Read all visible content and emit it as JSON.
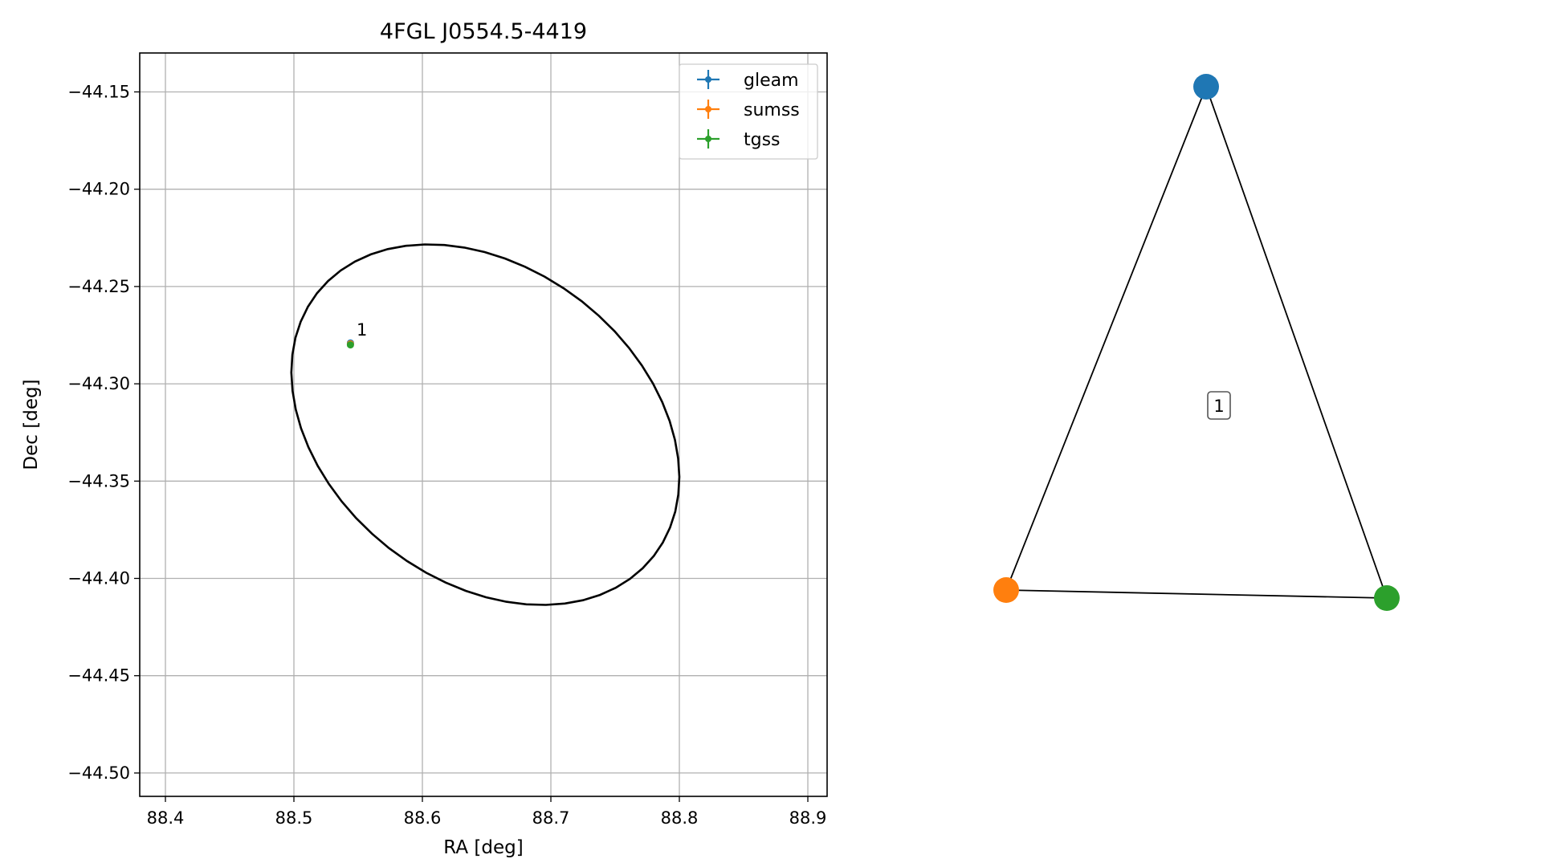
{
  "chart_data": [
    {
      "type": "scatter",
      "title": "4FGL J0554.5-4419",
      "xlabel": "RA [deg]",
      "ylabel": "Dec [deg]",
      "xlim": [
        88.38,
        88.915
      ],
      "ylim": [
        -44.512,
        -44.13
      ],
      "xticks": [
        88.4,
        88.5,
        88.6,
        88.7,
        88.8,
        88.9
      ],
      "yticks": [
        -44.15,
        -44.2,
        -44.25,
        -44.3,
        -44.35,
        -44.4,
        -44.45,
        -44.5
      ],
      "xtick_labels": [
        "88.4",
        "88.5",
        "88.6",
        "88.7",
        "88.8",
        "88.9"
      ],
      "ytick_labels": [
        "−44.15",
        "−44.20",
        "−44.25",
        "−44.30",
        "−44.35",
        "−44.40",
        "−44.45",
        "−44.50"
      ],
      "grid": true,
      "legend_position": "top-right",
      "series": [
        {
          "name": "gleam",
          "color": "#1f77b4",
          "x": [
            88.544
          ],
          "y": [
            -44.279
          ]
        },
        {
          "name": "sumss",
          "color": "#ff7f0e",
          "x": [
            88.544
          ],
          "y": [
            -44.2795
          ]
        },
        {
          "name": "tgss",
          "color": "#2ca02c",
          "x": [
            88.544
          ],
          "y": [
            -44.28
          ]
        }
      ],
      "annotations": [
        {
          "text": "1",
          "x": 88.55,
          "y": -44.274
        }
      ],
      "ellipse": {
        "center_ra": 88.649,
        "center_dec": -44.321,
        "color": "#000000"
      }
    },
    {
      "type": "graph",
      "nodes": [
        {
          "id": "gleam",
          "color": "#1f77b4"
        },
        {
          "id": "sumss",
          "color": "#ff7f0e"
        },
        {
          "id": "tgss",
          "color": "#2ca02c"
        }
      ],
      "edges": [
        [
          "gleam",
          "sumss"
        ],
        [
          "sumss",
          "tgss"
        ],
        [
          "tgss",
          "gleam"
        ]
      ],
      "group_label": "1"
    }
  ]
}
